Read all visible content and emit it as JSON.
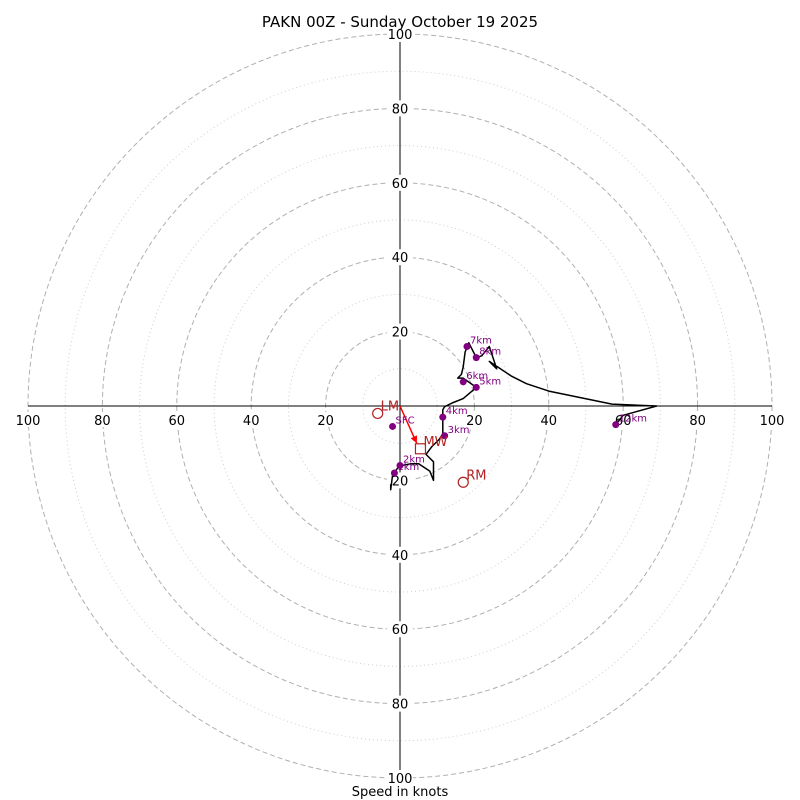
{
  "chart_data": {
    "type": "hodograph",
    "title": "PAKN 00Z - Sunday October 19 2025",
    "xlabel": "Speed in knots",
    "max_speed": 100,
    "ring_major": [
      20,
      40,
      60,
      80,
      100
    ],
    "ring_minor": [
      10,
      30,
      50,
      70,
      90
    ],
    "ticks_x": [
      {
        "v": -100,
        "label": "100"
      },
      {
        "v": -80,
        "label": "80"
      },
      {
        "v": -60,
        "label": "60"
      },
      {
        "v": -40,
        "label": "40"
      },
      {
        "v": -20,
        "label": "20"
      },
      {
        "v": 20,
        "label": "20"
      },
      {
        "v": 40,
        "label": "40"
      },
      {
        "v": 60,
        "label": "60"
      },
      {
        "v": 80,
        "label": "80"
      },
      {
        "v": 100,
        "label": "100"
      }
    ],
    "ticks_y": [
      {
        "v": 100,
        "label": "100"
      },
      {
        "v": 80,
        "label": "80"
      },
      {
        "v": 60,
        "label": "60"
      },
      {
        "v": 40,
        "label": "40"
      },
      {
        "v": 20,
        "label": "20"
      },
      {
        "v": -20,
        "label": "20"
      },
      {
        "v": -40,
        "label": "40"
      },
      {
        "v": -60,
        "label": "60"
      },
      {
        "v": -80,
        "label": "80"
      },
      {
        "v": -100,
        "label": "100"
      }
    ],
    "trace": [
      [
        -2.5,
        -21.0
      ],
      [
        -2.5,
        -22.5
      ],
      [
        -2.0,
        -18.5
      ],
      [
        -0.5,
        -16.5
      ],
      [
        0.5,
        -16.0
      ],
      [
        3.0,
        -15.5
      ],
      [
        5.0,
        -15.5
      ],
      [
        8.0,
        -17.5
      ],
      [
        9.0,
        -20.0
      ],
      [
        9.0,
        -15.0
      ],
      [
        7.0,
        -13.0
      ],
      [
        8.5,
        -11.0
      ],
      [
        10.5,
        -9.0
      ],
      [
        11.5,
        -7.5
      ],
      [
        11.5,
        -4.0
      ],
      [
        11.5,
        -1.0
      ],
      [
        12.0,
        -0.2
      ],
      [
        14.0,
        0.8
      ],
      [
        17.0,
        2.0
      ],
      [
        20.5,
        5.0
      ],
      [
        17.0,
        7.5
      ],
      [
        15.5,
        7.5
      ],
      [
        16.5,
        8.5
      ],
      [
        17.0,
        10.5
      ],
      [
        17.5,
        14.5
      ],
      [
        18.5,
        17.0
      ],
      [
        20.5,
        13.0
      ],
      [
        22.0,
        13.5
      ],
      [
        24.0,
        16.0
      ],
      [
        26.0,
        10.0
      ],
      [
        24.0,
        12.0
      ],
      [
        30.0,
        8.0
      ],
      [
        34.0,
        6.0
      ],
      [
        40.0,
        4.0
      ],
      [
        57.0,
        0.5
      ],
      [
        69.0,
        0.0
      ],
      [
        60.0,
        -2.5
      ],
      [
        58.0,
        -5.0
      ]
    ],
    "height_points": [
      {
        "label": "SFC",
        "u": -2.0,
        "v": -5.5
      },
      {
        "label": "1km",
        "u": -1.5,
        "v": -18.0
      },
      {
        "label": "2km",
        "u": 0.0,
        "v": -16.0
      },
      {
        "label": "3km",
        "u": 12.0,
        "v": -8.0
      },
      {
        "label": "4km",
        "u": 11.5,
        "v": -3.0
      },
      {
        "label": "5km",
        "u": 20.5,
        "v": 5.0
      },
      {
        "label": "6km",
        "u": 17.0,
        "v": 6.5
      },
      {
        "label": "7km",
        "u": 18.0,
        "v": 16.0
      },
      {
        "label": "8km",
        "u": 20.5,
        "v": 13.0
      },
      {
        "label": "12km",
        "u": 58.0,
        "v": -5.0
      }
    ],
    "shear_vector": {
      "from": [
        0,
        0
      ],
      "to": [
        4.5,
        -10.0
      ]
    },
    "motions": [
      {
        "label": "LM",
        "u": -6.0,
        "v": -2.0
      },
      {
        "label": "RM",
        "u": 17.0,
        "v": -20.5
      },
      {
        "label": "MW",
        "u": 5.5,
        "v": -11.5
      }
    ],
    "colors": {
      "trace": "#000000",
      "points": "#800080",
      "motion": "#b22222",
      "shear": "#ff0000",
      "ring": "#b0b0b0"
    }
  }
}
